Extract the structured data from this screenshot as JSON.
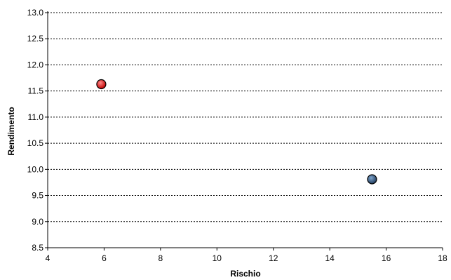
{
  "chart_data": {
    "type": "scatter",
    "title": "",
    "xlabel": "Rischio",
    "ylabel": "Rendimento",
    "xlim": [
      4,
      18
    ],
    "ylim": [
      8.5,
      13.0
    ],
    "xticks": [
      4,
      6,
      8,
      10,
      12,
      14,
      16,
      18
    ],
    "yticks": [
      8.5,
      9.0,
      9.5,
      10.0,
      10.5,
      11.0,
      11.5,
      12.0,
      12.5,
      13.0
    ],
    "grid": "horizontal-dotted",
    "legend": "none",
    "points": [
      {
        "x": 5.9,
        "y": 11.63,
        "color": "#c00000"
      },
      {
        "x": 15.5,
        "y": 9.81,
        "color": "#1f3a5a"
      }
    ]
  }
}
